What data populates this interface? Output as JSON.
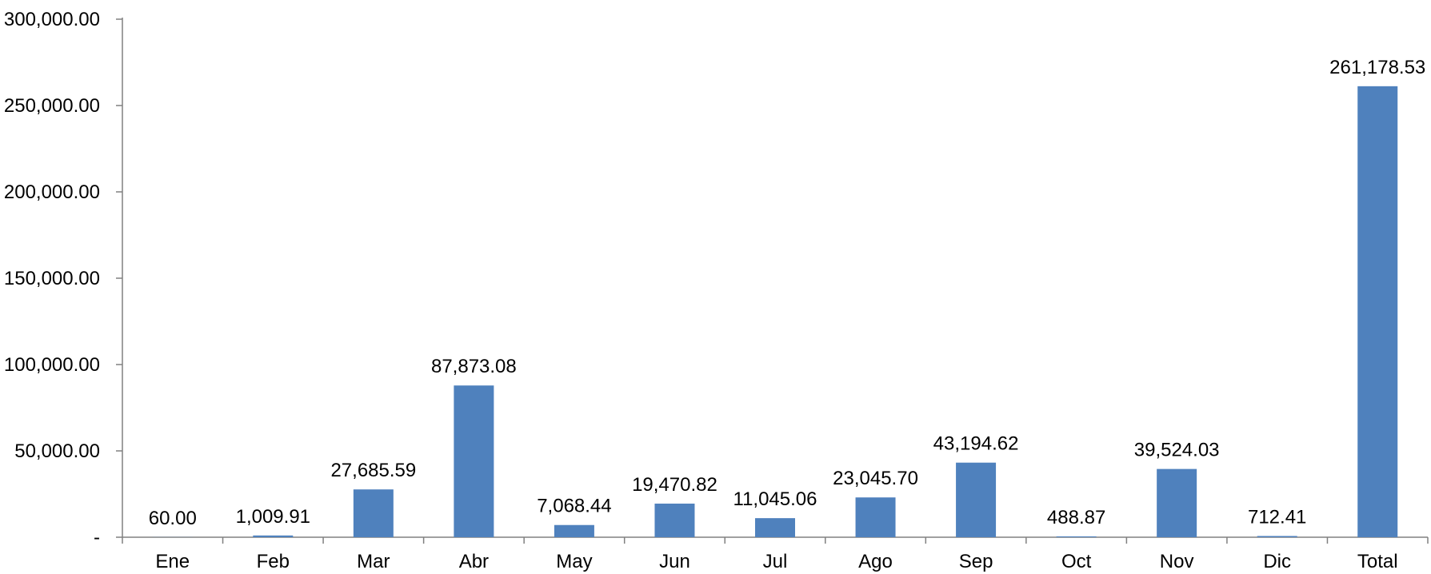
{
  "chart_data": {
    "type": "bar",
    "title": "",
    "xlabel": "",
    "ylabel": "",
    "categories": [
      "Ene",
      "Feb",
      "Mar",
      "Abr",
      "May",
      "Jun",
      "Jul",
      "Ago",
      "Sep",
      "Oct",
      "Nov",
      "Dic",
      "Total"
    ],
    "values": [
      60.0,
      1009.91,
      27685.59,
      87873.08,
      7068.44,
      19470.82,
      11045.06,
      23045.7,
      43194.62,
      488.87,
      39524.03,
      712.41,
      261178.53
    ],
    "data_labels": [
      "60.00",
      "1,009.91",
      "27,685.59",
      "87,873.08",
      "7,068.44",
      "19,470.82",
      "11,045.06",
      "23,045.70",
      "43,194.62",
      "488.87",
      "39,524.03",
      "712.41",
      "261,178.53"
    ],
    "ylim": [
      0,
      300000
    ],
    "yticks": [
      0,
      50000,
      100000,
      150000,
      200000,
      250000,
      300000
    ],
    "ytick_labels": [
      "-",
      "50,000.00",
      "100,000.00",
      "150,000.00",
      "200,000.00",
      "250,000.00",
      "300,000.00"
    ],
    "bar_color": "#4f81bd",
    "axis_color": "#808080",
    "grid": false,
    "legend": "none"
  }
}
